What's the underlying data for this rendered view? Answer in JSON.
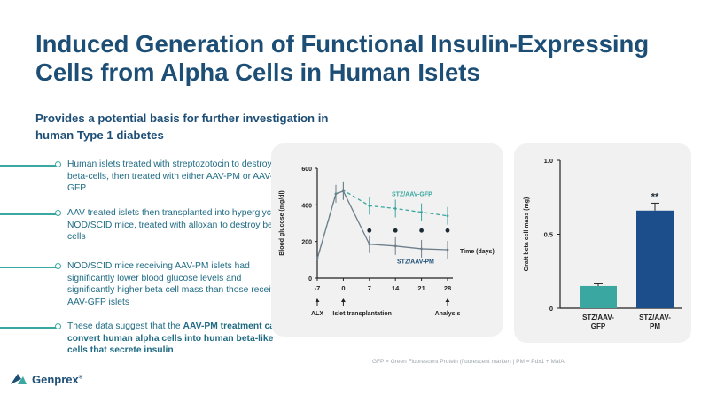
{
  "slide": {
    "title_line1": "Induced Generation of Functional Insulin-Expressing",
    "title_line2": "Cells from Alpha Cells in Human Islets",
    "subtitle_line1": "Provides a potential basis for further investigation in",
    "subtitle_line2": "human Type 1 diabetes"
  },
  "bullets": [
    {
      "text": "Human islets treated with streptozotocin to destroy beta-cells, then treated with either AAV-PM or AAV-GFP"
    },
    {
      "text": "AAV treated islets then transplanted into hyperglycemic NOD/SCID mice, treated with alloxan to destroy beta cells"
    },
    {
      "text": "NOD/SCID mice receiving AAV-PM islets had significantly lower blood glucose levels and significantly higher beta cell mass than those receiving AAV-GFP islets"
    },
    {
      "text_plain": "These data suggest that the ",
      "text_bold": "AAV-PM treatment can convert human alpha cells into human beta-like cells that secrete insulin"
    }
  ],
  "footnote": "GFP = Green Fluorescent Protein (fluorescent marker) | PM = Pdx1 + MafA",
  "logo": {
    "name": "Genprex",
    "mark": "®"
  },
  "colors": {
    "title": "#1d4e75",
    "teal": "#3aa8a0",
    "bullet_text": "#1f6b84",
    "pm_bar": "#1d4e8c"
  },
  "chart_data": [
    {
      "type": "line",
      "xlabel": "Time (days)",
      "ylabel": "Blood glucose (mg/dl)",
      "x": [
        -7,
        -2,
        0,
        7,
        14,
        21,
        28
      ],
      "xticks": [
        "-7",
        "0",
        "7",
        "14",
        "21",
        "28"
      ],
      "ylim": [
        0,
        600
      ],
      "yticks": [
        "0",
        "200",
        "400",
        "600"
      ],
      "series": [
        {
          "name": "STZ/AAV-GFP",
          "style": "dashed",
          "values": [
            105,
            460,
            480,
            395,
            380,
            360,
            340
          ]
        },
        {
          "name": "STZ/AAV-PM",
          "style": "solid",
          "values": [
            105,
            460,
            475,
            185,
            175,
            160,
            155
          ]
        }
      ],
      "significance": [
        {
          "x": 7,
          "label": "*"
        },
        {
          "x": 14,
          "label": "*"
        },
        {
          "x": 21,
          "label": "*"
        },
        {
          "x": 28,
          "label": "*"
        }
      ],
      "annotations": [
        {
          "x": -7,
          "label": "ALX"
        },
        {
          "x": 0,
          "label": "Islet transplantation"
        },
        {
          "x": 28,
          "label": "Analysis"
        }
      ]
    },
    {
      "type": "bar",
      "ylabel": "Graft beta cell mass (mg)",
      "ylim": [
        0,
        1.0
      ],
      "yticks": [
        "0",
        "0.5",
        "1.0"
      ],
      "categories": [
        "STZ/AAV-GFP",
        "STZ/AAV-PM"
      ],
      "category_lines": [
        [
          "STZ/AAV-",
          "GFP"
        ],
        [
          "STZ/AAV-",
          "PM"
        ]
      ],
      "values": [
        0.15,
        0.66
      ],
      "errors": [
        0.015,
        0.05
      ],
      "significance": [
        null,
        "**"
      ]
    }
  ]
}
